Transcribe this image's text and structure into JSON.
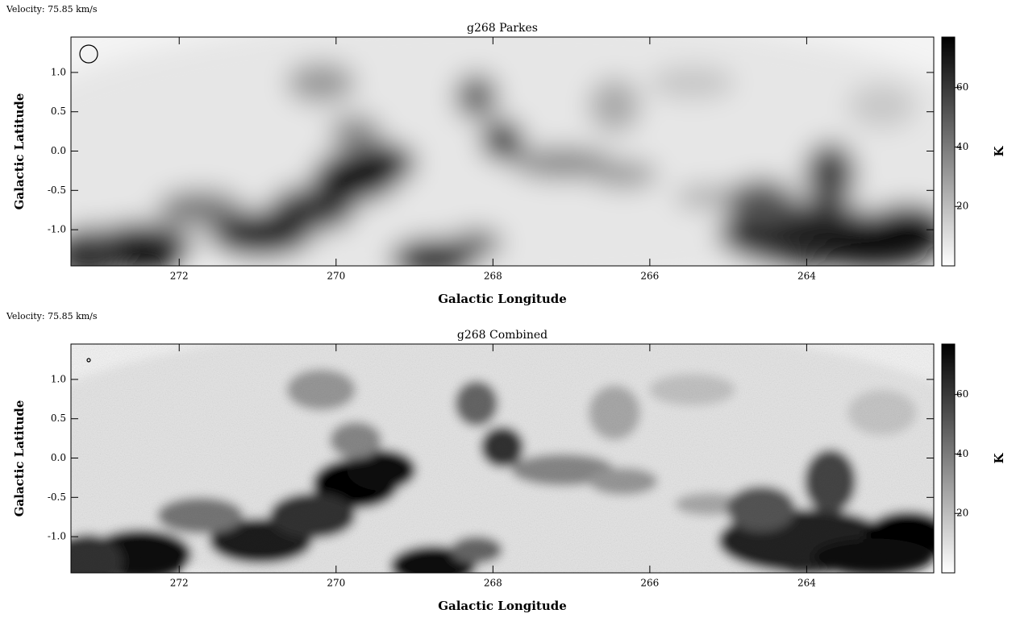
{
  "chart_data": [
    {
      "type": "heatmap",
      "velocity_label": "Velocity: 75.85 km/s",
      "title": "g268 Parkes",
      "x_label": "Galactic Longitude",
      "y_label": "Galactic Latitude",
      "xlim": [
        273.38,
        262.38
      ],
      "xticks": [
        272,
        270,
        268,
        266,
        264
      ],
      "ylim": [
        -1.46,
        1.45
      ],
      "yticks": [
        {
          "value": 1.0,
          "label": "1.0"
        },
        0.5,
        {
          "value": 0.0,
          "label": "0.0"
        },
        -0.5,
        {
          "value": -1.0,
          "label": "-1.0"
        }
      ],
      "colorbar": {
        "label": "K",
        "lim": [
          0,
          77
        ],
        "ticks": [
          20,
          40,
          60
        ]
      }
    },
    {
      "type": "heatmap",
      "velocity_label": "Velocity: 75.85 km/s",
      "title": "g268 Combined",
      "x_label": "Galactic Longitude",
      "y_label": "Galactic Latitude",
      "xlim": [
        273.38,
        262.38
      ],
      "xticks": [
        272,
        270,
        268,
        266,
        264
      ],
      "ylim": [
        -1.46,
        1.45
      ],
      "yticks": [
        {
          "value": 1.0,
          "label": "1.0"
        },
        0.5,
        {
          "value": 0.0,
          "label": "0.0"
        },
        -0.5,
        {
          "value": -1.0,
          "label": "-1.0"
        }
      ],
      "colorbar": {
        "label": "K",
        "lim": [
          0,
          77
        ],
        "ticks": [
          20,
          40,
          60
        ]
      }
    }
  ]
}
